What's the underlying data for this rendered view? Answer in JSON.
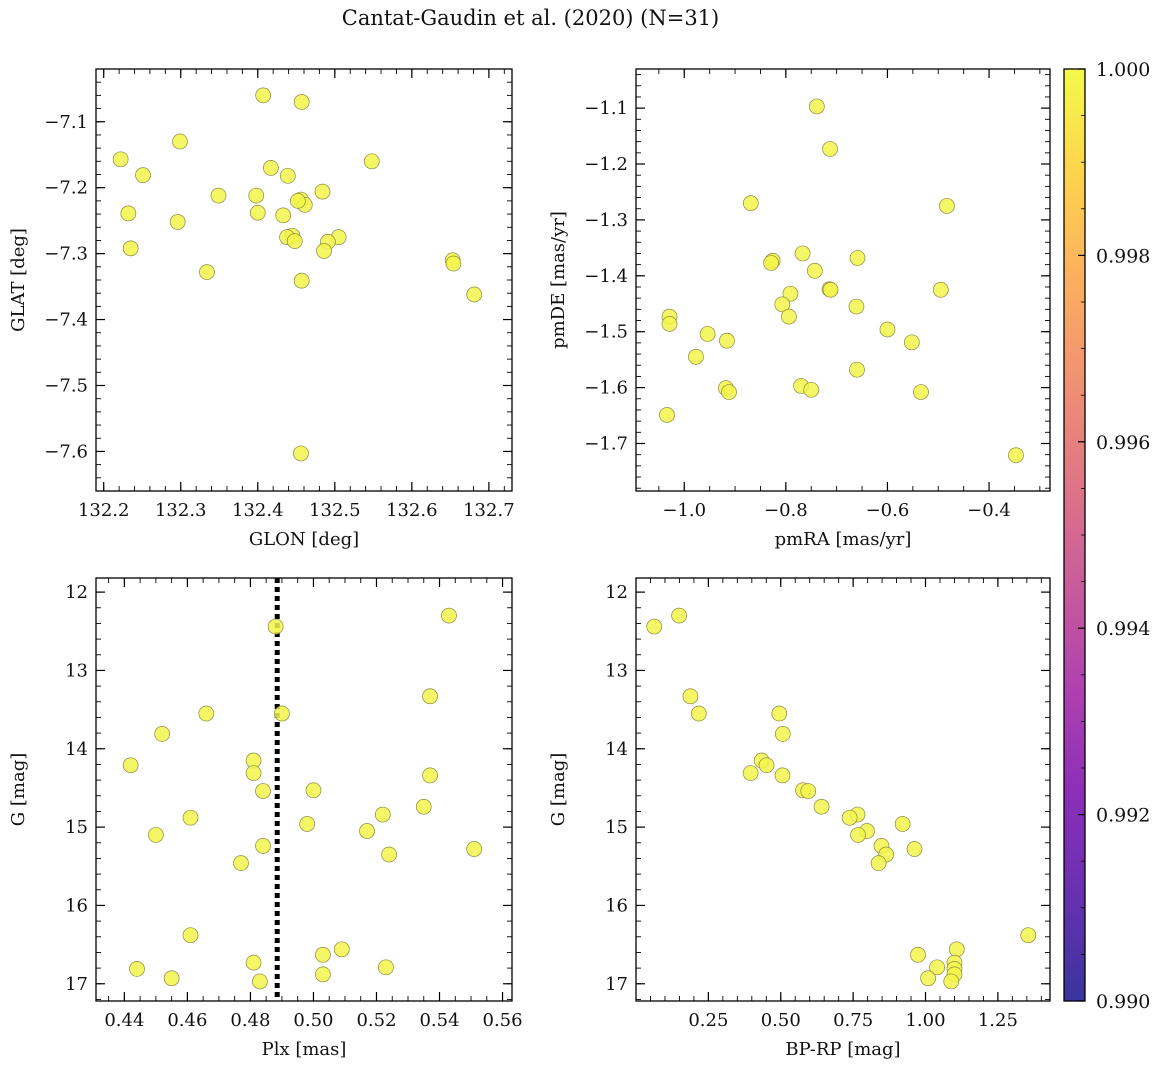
{
  "figure": {
    "title": "Cantat-Gaudin et al. (2020) (N=31)"
  },
  "colorbar": {
    "colormap": "plasma",
    "range": [
      0.99,
      1.0
    ],
    "ticks": [
      0.99,
      0.992,
      0.994,
      0.996,
      0.998,
      1.0
    ],
    "tick_labels": [
      "0.990",
      "0.992",
      "0.994",
      "0.996",
      "0.998",
      "1.000"
    ]
  },
  "marker": {
    "color": "#f3f54a",
    "edge": "#8a8a40",
    "membership_prob": 1.0
  },
  "chart_data": [
    {
      "type": "scatter",
      "id": "pos",
      "xlabel": "GLON [deg]",
      "ylabel": "GLAT [deg]",
      "xlim": [
        132.19,
        132.73
      ],
      "ylim": [
        -7.66,
        -7.02
      ],
      "xticks": [
        132.2,
        132.3,
        132.4,
        132.5,
        132.6,
        132.7
      ],
      "xtick_labels": [
        "132.2",
        "132.3",
        "132.4",
        "132.5",
        "132.6",
        "132.7"
      ],
      "yticks": [
        -7.1,
        -7.2,
        -7.3,
        -7.4,
        -7.5,
        -7.6
      ],
      "ytick_labels": [
        "−7.1",
        "−7.2",
        "−7.3",
        "−7.4",
        "−7.5",
        "−7.6"
      ],
      "points": [
        [
          132.407,
          -7.06
        ],
        [
          132.457,
          -7.07
        ],
        [
          132.299,
          -7.13
        ],
        [
          132.222,
          -7.157
        ],
        [
          132.548,
          -7.16
        ],
        [
          132.417,
          -7.17
        ],
        [
          132.251,
          -7.181
        ],
        [
          132.439,
          -7.182
        ],
        [
          132.484,
          -7.206
        ],
        [
          132.349,
          -7.212
        ],
        [
          132.398,
          -7.212
        ],
        [
          132.456,
          -7.218
        ],
        [
          132.461,
          -7.226
        ],
        [
          132.232,
          -7.239
        ],
        [
          132.4,
          -7.238
        ],
        [
          132.433,
          -7.242
        ],
        [
          132.296,
          -7.252
        ],
        [
          132.445,
          -7.273
        ],
        [
          132.438,
          -7.275
        ],
        [
          132.505,
          -7.275
        ],
        [
          132.448,
          -7.281
        ],
        [
          132.491,
          -7.282
        ],
        [
          132.235,
          -7.292
        ],
        [
          132.486,
          -7.296
        ],
        [
          132.653,
          -7.31
        ],
        [
          132.654,
          -7.315
        ],
        [
          132.334,
          -7.328
        ],
        [
          132.457,
          -7.341
        ],
        [
          132.681,
          -7.362
        ],
        [
          132.456,
          -7.603
        ],
        [
          132.452,
          -7.22
        ]
      ]
    },
    {
      "type": "scatter",
      "id": "pm",
      "xlabel": "pmRA [mas/yr]",
      "ylabel": "pmDE [mas/yr]",
      "xlim": [
        -1.095,
        -0.28
      ],
      "ylim": [
        -1.785,
        -1.03
      ],
      "xticks": [
        -1.0,
        -0.8,
        -0.6,
        -0.4
      ],
      "xtick_labels": [
        "−1.0",
        "−0.8",
        "−0.6",
        "−0.4"
      ],
      "yticks": [
        -1.1,
        -1.2,
        -1.3,
        -1.4,
        -1.5,
        -1.6,
        -1.7
      ],
      "ytick_labels": [
        "−1.1",
        "−1.2",
        "−1.3",
        "−1.4",
        "−1.5",
        "−1.6",
        "−1.7"
      ],
      "points": [
        [
          -0.739,
          -1.097
        ],
        [
          -0.713,
          -1.173
        ],
        [
          -0.869,
          -1.27
        ],
        [
          -0.483,
          -1.275
        ],
        [
          -0.767,
          -1.36
        ],
        [
          -0.659,
          -1.368
        ],
        [
          -0.826,
          -1.373
        ],
        [
          -0.829,
          -1.377
        ],
        [
          -0.743,
          -1.391
        ],
        [
          -0.714,
          -1.424
        ],
        [
          -0.712,
          -1.425
        ],
        [
          -0.495,
          -1.425
        ],
        [
          -0.791,
          -1.432
        ],
        [
          -0.807,
          -1.451
        ],
        [
          -0.661,
          -1.455
        ],
        [
          -1.029,
          -1.473
        ],
        [
          -0.794,
          -1.473
        ],
        [
          -1.029,
          -1.486
        ],
        [
          -0.6,
          -1.496
        ],
        [
          -0.954,
          -1.504
        ],
        [
          -0.916,
          -1.516
        ],
        [
          -0.552,
          -1.519
        ],
        [
          -0.977,
          -1.545
        ],
        [
          -0.66,
          -1.568
        ],
        [
          -0.77,
          -1.597
        ],
        [
          -0.918,
          -1.601
        ],
        [
          -0.75,
          -1.604
        ],
        [
          -0.912,
          -1.608
        ],
        [
          -0.534,
          -1.608
        ],
        [
          -1.034,
          -1.649
        ],
        [
          -0.347,
          -1.721
        ]
      ]
    },
    {
      "type": "scatter",
      "id": "plx",
      "xlabel": "Plx [mas]",
      "ylabel": "G [mag]",
      "xlim": [
        0.431,
        0.563
      ],
      "ylim": [
        17.22,
        11.82
      ],
      "xticks": [
        0.44,
        0.46,
        0.48,
        0.5,
        0.52,
        0.54,
        0.56
      ],
      "xtick_labels": [
        "0.44",
        "0.46",
        "0.48",
        "0.50",
        "0.52",
        "0.54",
        "0.56"
      ],
      "yticks": [
        12,
        13,
        14,
        15,
        16,
        17
      ],
      "ytick_labels": [
        "12",
        "13",
        "14",
        "15",
        "16",
        "17"
      ],
      "vline": 0.4885,
      "points": [
        [
          0.543,
          12.3
        ],
        [
          0.488,
          12.44
        ],
        [
          0.537,
          13.33
        ],
        [
          0.466,
          13.55
        ],
        [
          0.49,
          13.55
        ],
        [
          0.452,
          13.81
        ],
        [
          0.481,
          14.15
        ],
        [
          0.442,
          14.21
        ],
        [
          0.481,
          14.31
        ],
        [
          0.537,
          14.34
        ],
        [
          0.5,
          14.53
        ],
        [
          0.484,
          14.54
        ],
        [
          0.535,
          14.74
        ],
        [
          0.522,
          14.84
        ],
        [
          0.461,
          14.88
        ],
        [
          0.498,
          14.96
        ],
        [
          0.517,
          15.05
        ],
        [
          0.45,
          15.1
        ],
        [
          0.484,
          15.24
        ],
        [
          0.551,
          15.28
        ],
        [
          0.524,
          15.35
        ],
        [
          0.477,
          15.46
        ],
        [
          0.461,
          16.38
        ],
        [
          0.509,
          16.56
        ],
        [
          0.503,
          16.63
        ],
        [
          0.481,
          16.73
        ],
        [
          0.523,
          16.79
        ],
        [
          0.444,
          16.81
        ],
        [
          0.503,
          16.88
        ],
        [
          0.455,
          16.93
        ],
        [
          0.483,
          16.97
        ]
      ]
    },
    {
      "type": "scatter",
      "id": "cmd",
      "xlabel": "BP-RP [mag]",
      "ylabel": "G [mag]",
      "xlim": [
        0.0,
        1.43
      ],
      "ylim": [
        17.22,
        11.82
      ],
      "xticks": [
        0.25,
        0.5,
        0.75,
        1.0,
        1.25
      ],
      "xtick_labels": [
        "0.25",
        "0.50",
        "0.75",
        "1.00",
        "1.25"
      ],
      "yticks": [
        12,
        13,
        14,
        15,
        16,
        17
      ],
      "ytick_labels": [
        "12",
        "13",
        "14",
        "15",
        "16",
        "17"
      ],
      "points": [
        [
          0.149,
          12.3
        ],
        [
          0.063,
          12.44
        ],
        [
          0.188,
          13.33
        ],
        [
          0.217,
          13.55
        ],
        [
          0.495,
          13.55
        ],
        [
          0.507,
          13.81
        ],
        [
          0.434,
          14.15
        ],
        [
          0.451,
          14.21
        ],
        [
          0.396,
          14.31
        ],
        [
          0.506,
          14.34
        ],
        [
          0.577,
          14.53
        ],
        [
          0.595,
          14.54
        ],
        [
          0.641,
          14.74
        ],
        [
          0.765,
          14.84
        ],
        [
          0.738,
          14.88
        ],
        [
          0.921,
          14.96
        ],
        [
          0.798,
          15.05
        ],
        [
          0.767,
          15.1
        ],
        [
          0.848,
          15.24
        ],
        [
          0.962,
          15.28
        ],
        [
          0.864,
          15.35
        ],
        [
          0.838,
          15.46
        ],
        [
          1.355,
          16.38
        ],
        [
          1.108,
          16.56
        ],
        [
          0.974,
          16.63
        ],
        [
          1.1,
          16.73
        ],
        [
          1.04,
          16.79
        ],
        [
          1.1,
          16.81
        ],
        [
          1.1,
          16.88
        ],
        [
          1.009,
          16.93
        ],
        [
          1.089,
          16.97
        ]
      ]
    }
  ]
}
